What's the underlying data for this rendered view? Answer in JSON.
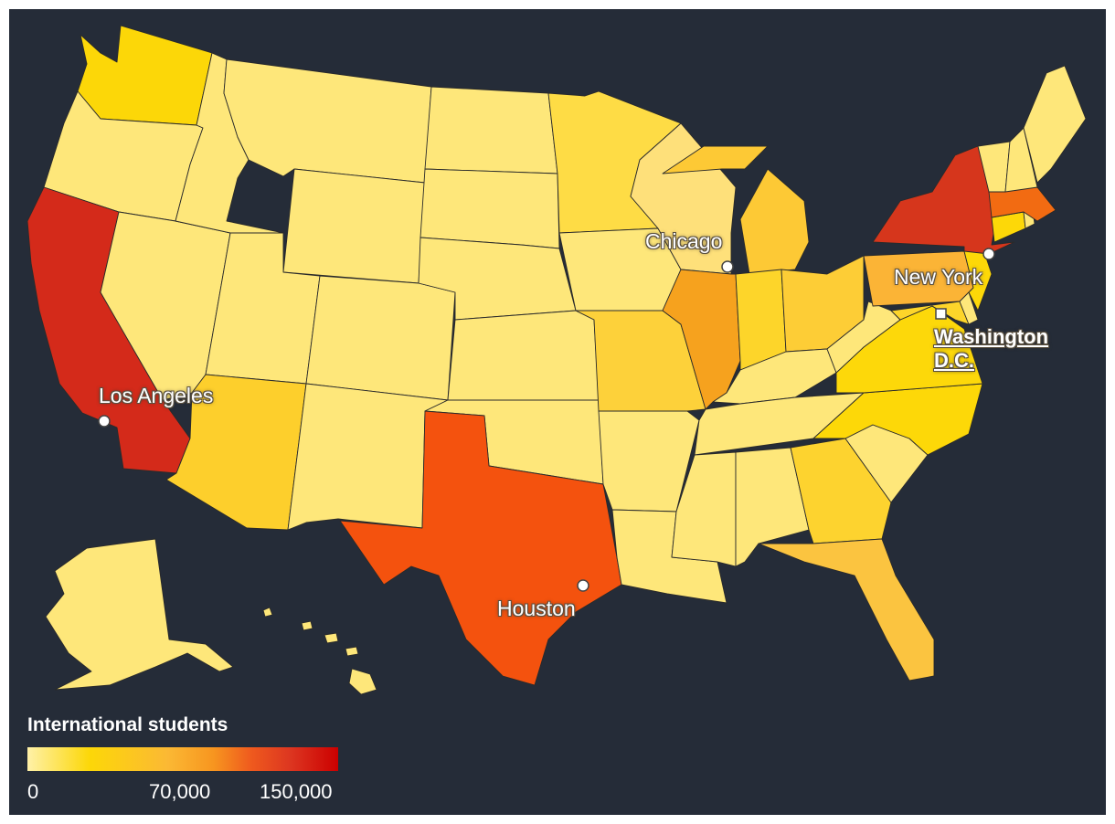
{
  "legend": {
    "title": "International students",
    "ticks": [
      "0",
      "70,000",
      "150,000"
    ],
    "gradient": [
      "#fff1a8",
      "#fcd708",
      "#fbb934",
      "#f7951f",
      "#ef5a1e",
      "#dc3520",
      "#cc0000"
    ]
  },
  "colors": {
    "background": "#252c38",
    "state_border": "#2a2a2a",
    "label_text": "#ffffff"
  },
  "cities": {
    "los_angeles": "Los Angeles",
    "chicago": "Chicago",
    "new_york": "New York",
    "houston": "Houston",
    "washington_line1": "Washington",
    "washington_line2": "D.C."
  },
  "state_fills": {
    "Washington": "#fcd708",
    "Oregon": "#fee77a",
    "California": "#d42a1a",
    "Nevada": "#fee77a",
    "Idaho": "#fee77a",
    "Montana": "#fee77a",
    "Wyoming": "#fee77a",
    "Utah": "#fee77a",
    "Arizona": "#fdcf2c",
    "Colorado": "#fee77a",
    "New Mexico": "#fee77a",
    "North Dakota": "#fee77a",
    "South Dakota": "#fee77a",
    "Nebraska": "#fee77a",
    "Kansas": "#fee77a",
    "Oklahoma": "#fee77a",
    "Texas": "#f4520e",
    "Minnesota": "#fedc45",
    "Iowa": "#fee77a",
    "Missouri": "#fdd13a",
    "Arkansas": "#fee77a",
    "Louisiana": "#fee77a",
    "Wisconsin": "#fee07a",
    "Illinois": "#f6a21e",
    "Michigan": "#fdc935",
    "Indiana": "#fdd52a",
    "Ohio": "#fdcd36",
    "Kentucky": "#fee77a",
    "Tennessee": "#fee77a",
    "Mississippi": "#fee77a",
    "Alabama": "#fee77a",
    "Georgia": "#fdd32f",
    "Florida": "#fbc440",
    "South Carolina": "#fee77a",
    "North Carolina": "#fdd808",
    "Virginia": "#fdd80a",
    "West Virginia": "#fee77a",
    "Pennsylvania": "#fbb436",
    "New York": "#d6361c",
    "Maryland": "#fdd52a",
    "Delaware": "#fee77a",
    "New Jersey": "#fdd808",
    "Connecticut": "#fdd808",
    "Rhode Island": "#fee77a",
    "Massachusetts": "#f26b12",
    "Vermont": "#fee77a",
    "New Hampshire": "#fee77a",
    "Maine": "#fee77a",
    "Alaska": "#fee77a",
    "Hawaii": "#fee77a"
  }
}
